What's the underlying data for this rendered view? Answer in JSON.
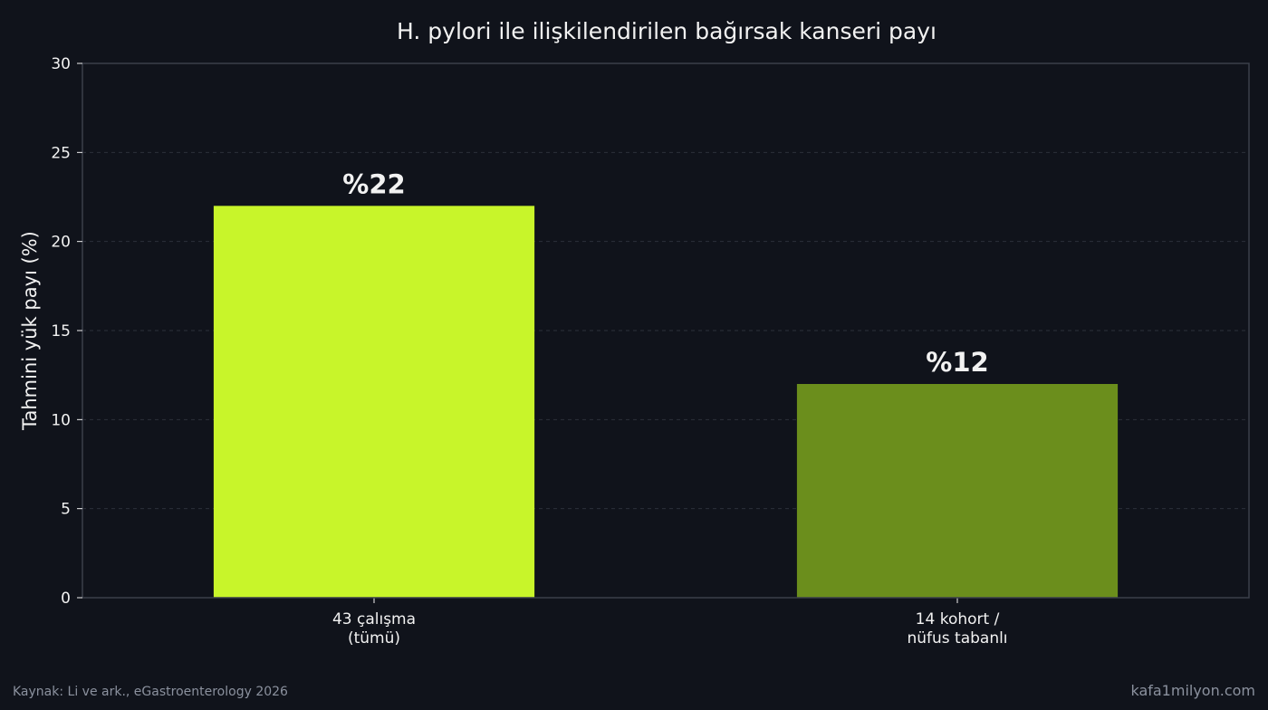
{
  "chart_data": {
    "type": "bar",
    "title": "H. pylori ile ilişkilendirilen bağırsak kanseri payı",
    "ylabel": "Tahmini yük payı (%)",
    "xlabel": "",
    "categories": [
      [
        "43 çalışma",
        "(tümü)"
      ],
      [
        "14 kohort /",
        "nüfus tabanlı"
      ]
    ],
    "values": [
      22,
      12
    ],
    "data_labels": [
      "%22",
      "%12"
    ],
    "bar_colors": [
      "#c8f52a",
      "#6b8e1c"
    ],
    "ylim": [
      0,
      30
    ],
    "yticks": [
      0,
      5,
      10,
      15,
      20,
      25,
      30
    ],
    "grid": true
  },
  "footer": {
    "source": "Kaynak: Li ve ark., eGastroenterology 2026",
    "site": "kafa1milyon.com"
  },
  "colors": {
    "background": "#10131b",
    "axis": "#3a3f4b",
    "grid": "#2b303b",
    "text": "#f2f2f2"
  }
}
